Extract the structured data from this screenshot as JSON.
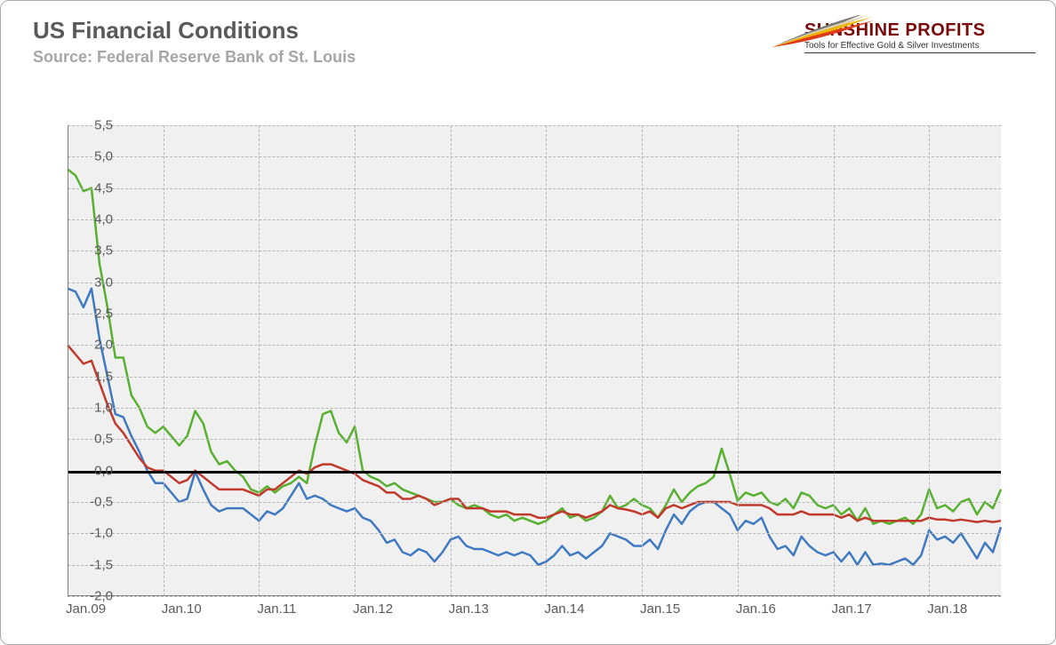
{
  "header": {
    "title": "US Financial Conditions",
    "subtitle": "Source: Federal Reserve Bank of St. Louis"
  },
  "logo": {
    "name": "SUNSHINE PROFITS",
    "tagline": "Tools for Effective Gold & Silver Investments",
    "swoosh_colors": [
      "#e03a1a",
      "#f0b400",
      "#d9d0b0",
      "#7a7a7a"
    ]
  },
  "chart": {
    "type": "line",
    "background_color": "#f0f0f0",
    "grid_color": "#b7b7b7",
    "axis_color": "#808080",
    "zero_color": "#000000",
    "tick_font_color": "#595959",
    "tick_font_size": 15,
    "ylim": [
      -2.0,
      5.5
    ],
    "ytick_step": 0.5,
    "yticks": [
      "-2,0",
      "-1,5",
      "-1,0",
      "-0,5",
      "0,0",
      "0,5",
      "1,0",
      "1,5",
      "2,0",
      "2,5",
      "3,0",
      "3,5",
      "4,0",
      "4,5",
      "5,0",
      "5,5"
    ],
    "xlabels": [
      "Jan.09",
      "Jan.10",
      "Jan.11",
      "Jan.12",
      "Jan.13",
      "Jan.14",
      "Jan.15",
      "Jan.16",
      "Jan.17",
      "Jan.18"
    ],
    "x_count": 118,
    "line_width": 2.5,
    "series": [
      {
        "name": "green",
        "color": "#58b030",
        "values": [
          4.8,
          4.7,
          4.45,
          4.5,
          3.3,
          2.6,
          1.8,
          1.8,
          1.2,
          1.0,
          0.7,
          0.6,
          0.7,
          0.55,
          0.4,
          0.55,
          0.95,
          0.75,
          0.3,
          0.1,
          0.15,
          0.0,
          -0.1,
          -0.3,
          -0.35,
          -0.25,
          -0.35,
          -0.25,
          -0.2,
          -0.1,
          -0.2,
          0.4,
          0.9,
          0.95,
          0.6,
          0.45,
          0.7,
          0.0,
          -0.1,
          -0.15,
          -0.25,
          -0.2,
          -0.3,
          -0.35,
          -0.4,
          -0.45,
          -0.5,
          -0.5,
          -0.45,
          -0.55,
          -0.6,
          -0.55,
          -0.6,
          -0.7,
          -0.75,
          -0.7,
          -0.8,
          -0.75,
          -0.8,
          -0.85,
          -0.8,
          -0.7,
          -0.6,
          -0.75,
          -0.7,
          -0.8,
          -0.75,
          -0.65,
          -0.4,
          -0.6,
          -0.55,
          -0.45,
          -0.55,
          -0.6,
          -0.75,
          -0.55,
          -0.3,
          -0.5,
          -0.35,
          -0.25,
          -0.2,
          -0.1,
          0.35,
          -0.05,
          -0.48,
          -0.35,
          -0.4,
          -0.35,
          -0.5,
          -0.55,
          -0.45,
          -0.6,
          -0.35,
          -0.4,
          -0.55,
          -0.6,
          -0.55,
          -0.7,
          -0.6,
          -0.8,
          -0.6,
          -0.85,
          -0.8,
          -0.85,
          -0.8,
          -0.75,
          -0.85,
          -0.7,
          -0.3,
          -0.6,
          -0.55,
          -0.65,
          -0.5,
          -0.45,
          -0.7,
          -0.5,
          -0.6,
          -0.3
        ]
      },
      {
        "name": "blue",
        "color": "#3f79c2",
        "values": [
          2.9,
          2.85,
          2.6,
          2.9,
          2.1,
          1.5,
          0.9,
          0.85,
          0.55,
          0.3,
          0.0,
          -0.2,
          -0.2,
          -0.35,
          -0.5,
          -0.45,
          -0.02,
          -0.3,
          -0.55,
          -0.65,
          -0.6,
          -0.6,
          -0.6,
          -0.7,
          -0.8,
          -0.65,
          -0.7,
          -0.6,
          -0.4,
          -0.2,
          -0.45,
          -0.4,
          -0.45,
          -0.55,
          -0.6,
          -0.65,
          -0.6,
          -0.75,
          -0.8,
          -0.95,
          -1.15,
          -1.1,
          -1.3,
          -1.35,
          -1.25,
          -1.3,
          -1.45,
          -1.3,
          -1.1,
          -1.05,
          -1.2,
          -1.25,
          -1.25,
          -1.3,
          -1.35,
          -1.3,
          -1.35,
          -1.3,
          -1.35,
          -1.5,
          -1.45,
          -1.35,
          -1.2,
          -1.35,
          -1.3,
          -1.4,
          -1.3,
          -1.2,
          -1.0,
          -1.05,
          -1.1,
          -1.2,
          -1.2,
          -1.1,
          -1.25,
          -0.95,
          -0.7,
          -0.85,
          -0.65,
          -0.55,
          -0.5,
          -0.5,
          -0.6,
          -0.7,
          -0.95,
          -0.8,
          -0.85,
          -0.75,
          -1.05,
          -1.25,
          -1.2,
          -1.35,
          -1.05,
          -1.2,
          -1.3,
          -1.35,
          -1.3,
          -1.45,
          -1.3,
          -1.5,
          -1.3,
          -1.5,
          -1.48,
          -1.5,
          -1.45,
          -1.4,
          -1.5,
          -1.35,
          -0.95,
          -1.1,
          -1.05,
          -1.15,
          -1.0,
          -1.2,
          -1.4,
          -1.15,
          -1.3,
          -0.9
        ]
      },
      {
        "name": "red",
        "color": "#c0392b",
        "values": [
          2.0,
          1.85,
          1.7,
          1.75,
          1.4,
          1.05,
          0.75,
          0.6,
          0.4,
          0.2,
          0.05,
          0.0,
          0.0,
          -0.1,
          -0.2,
          -0.15,
          0.0,
          -0.1,
          -0.2,
          -0.3,
          -0.3,
          -0.3,
          -0.3,
          -0.35,
          -0.4,
          -0.3,
          -0.3,
          -0.2,
          -0.1,
          0.0,
          -0.05,
          0.05,
          0.1,
          0.1,
          0.05,
          0.0,
          -0.05,
          -0.15,
          -0.2,
          -0.25,
          -0.35,
          -0.35,
          -0.45,
          -0.45,
          -0.4,
          -0.45,
          -0.55,
          -0.5,
          -0.45,
          -0.45,
          -0.6,
          -0.6,
          -0.6,
          -0.65,
          -0.65,
          -0.65,
          -0.7,
          -0.7,
          -0.7,
          -0.75,
          -0.75,
          -0.7,
          -0.65,
          -0.7,
          -0.7,
          -0.75,
          -0.7,
          -0.65,
          -0.55,
          -0.6,
          -0.62,
          -0.65,
          -0.7,
          -0.65,
          -0.75,
          -0.6,
          -0.55,
          -0.6,
          -0.55,
          -0.5,
          -0.5,
          -0.5,
          -0.5,
          -0.5,
          -0.55,
          -0.55,
          -0.55,
          -0.55,
          -0.6,
          -0.7,
          -0.7,
          -0.7,
          -0.65,
          -0.7,
          -0.7,
          -0.7,
          -0.7,
          -0.75,
          -0.7,
          -0.8,
          -0.75,
          -0.8,
          -0.8,
          -0.8,
          -0.8,
          -0.8,
          -0.8,
          -0.8,
          -0.75,
          -0.78,
          -0.78,
          -0.8,
          -0.78,
          -0.8,
          -0.82,
          -0.8,
          -0.82,
          -0.8
        ]
      }
    ]
  }
}
